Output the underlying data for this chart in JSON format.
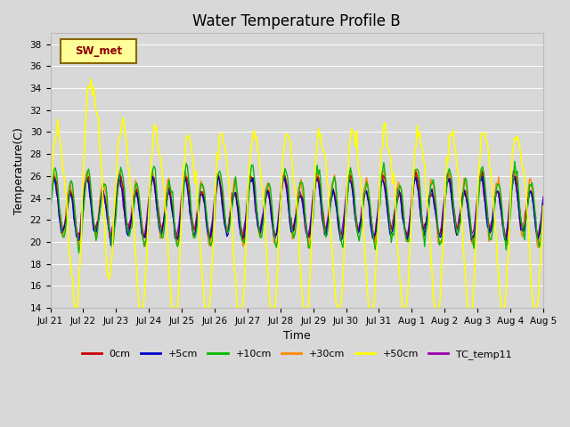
{
  "title": "Water Temperature Profile B",
  "xlabel": "Time",
  "ylabel": "Temperature(C)",
  "ylim": [
    14,
    39
  ],
  "yticks": [
    14,
    16,
    18,
    20,
    22,
    24,
    26,
    28,
    30,
    32,
    34,
    36,
    38
  ],
  "bg_color": "#d8d8d8",
  "grid_color": "#ffffff",
  "series": {
    "0cm": {
      "color": "#cc0000",
      "lw": 1.0
    },
    "+5cm": {
      "color": "#0000cc",
      "lw": 1.0
    },
    "+10cm": {
      "color": "#00bb00",
      "lw": 1.0
    },
    "+30cm": {
      "color": "#ff8800",
      "lw": 1.0
    },
    "+50cm": {
      "color": "#ffff00",
      "lw": 1.2
    },
    "TC_temp11": {
      "color": "#9900aa",
      "lw": 1.0
    }
  },
  "legend_label": "SW_met",
  "legend_bg": "#ffff99",
  "legend_border": "#886600",
  "xtick_labels": [
    "Jul 21",
    "Jul 22",
    "Jul 23",
    "Jul 24",
    "Jul 25",
    "Jul 26",
    "Jul 27",
    "Jul 28",
    "Jul 29",
    "Jul 30",
    "Jul 31",
    "Aug 1",
    "Aug 2",
    "Aug 3",
    "Aug 4",
    "Aug 5"
  ],
  "title_fontsize": 12,
  "axis_label_fontsize": 9,
  "tick_fontsize": 7.5
}
